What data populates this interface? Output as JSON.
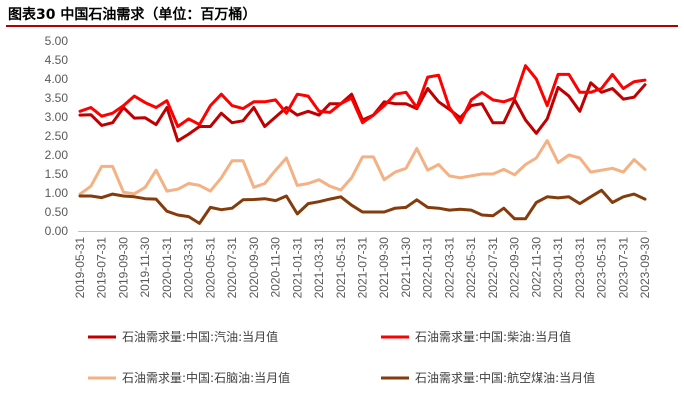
{
  "title": "图表30 中国石油需求（单位：百万桶）",
  "chart_data": {
    "type": "line",
    "title": "图表30 中国石油需求（单位：百万桶）",
    "xlabel": "",
    "ylabel": "",
    "ylim": [
      0,
      5
    ],
    "yticks": [
      "0.00",
      "0.50",
      "1.00",
      "1.50",
      "2.00",
      "2.50",
      "3.00",
      "3.50",
      "4.00",
      "4.50",
      "5.00"
    ],
    "grid": false,
    "legend_position": "bottom",
    "x": [
      "2019-05-31",
      "2019-06-30",
      "2019-07-31",
      "2019-08-31",
      "2019-09-30",
      "2019-10-31",
      "2019-11-30",
      "2019-12-31",
      "2020-01-31",
      "2020-02-29",
      "2020-03-31",
      "2020-04-30",
      "2020-05-31",
      "2020-06-30",
      "2020-07-31",
      "2020-08-31",
      "2020-09-30",
      "2020-10-31",
      "2020-11-30",
      "2020-12-31",
      "2021-01-31",
      "2021-02-28",
      "2021-03-31",
      "2021-04-30",
      "2021-05-31",
      "2021-06-30",
      "2021-07-31",
      "2021-08-31",
      "2021-09-30",
      "2021-10-31",
      "2021-11-30",
      "2021-12-31",
      "2022-01-31",
      "2022-02-28",
      "2022-03-31",
      "2022-04-30",
      "2022-05-31",
      "2022-06-30",
      "2022-07-31",
      "2022-08-31",
      "2022-09-30",
      "2022-10-31",
      "2022-11-30",
      "2022-12-31",
      "2023-01-31",
      "2023-02-28",
      "2023-03-31",
      "2023-04-30",
      "2023-05-31",
      "2023-06-30",
      "2023-07-31",
      "2023-08-31",
      "2023-09-30"
    ],
    "xtick_labels": [
      "2019-05-31",
      "2019-07-31",
      "2019-09-30",
      "2019-11-30",
      "2020-01-31",
      "2020-03-31",
      "2020-05-31",
      "2020-07-31",
      "2020-09-30",
      "2020-11-30",
      "2021-01-31",
      "2021-03-31",
      "2021-05-31",
      "2021-07-31",
      "2021-09-30",
      "2021-11-30",
      "2022-01-31",
      "2022-03-31",
      "2022-05-31",
      "2022-07-31",
      "2022-09-30",
      "2022-11-30",
      "2023-01-31",
      "2023-03-31",
      "2023-05-31",
      "2023-07-31",
      "2023-09-30"
    ],
    "series": [
      {
        "name": "石油需求量:中国:汽油:当月值",
        "color": "#c00000",
        "values": [
          3.05,
          3.06,
          2.78,
          2.85,
          3.25,
          2.97,
          2.98,
          2.8,
          3.25,
          2.37,
          2.55,
          2.75,
          2.75,
          3.1,
          2.85,
          2.9,
          3.25,
          2.75,
          3.0,
          3.25,
          3.05,
          3.15,
          3.05,
          3.35,
          3.35,
          3.6,
          2.92,
          3.05,
          3.4,
          3.35,
          3.35,
          3.22,
          3.75,
          3.4,
          3.2,
          2.98,
          3.3,
          3.35,
          2.85,
          2.85,
          3.45,
          2.92,
          2.57,
          2.95,
          3.78,
          3.55,
          3.15,
          3.9,
          3.65,
          3.75,
          3.47,
          3.52,
          3.85
        ]
      },
      {
        "name": "石油需求量:中国:柴油:当月值",
        "color": "#ff0000",
        "values": [
          3.15,
          3.25,
          3.02,
          3.1,
          3.3,
          3.55,
          3.38,
          3.25,
          3.43,
          2.75,
          2.95,
          2.8,
          3.3,
          3.6,
          3.3,
          3.22,
          3.4,
          3.4,
          3.45,
          3.1,
          3.6,
          3.55,
          3.15,
          3.12,
          3.35,
          3.5,
          2.85,
          3.05,
          3.3,
          3.6,
          3.65,
          3.25,
          4.05,
          4.1,
          3.25,
          2.85,
          3.45,
          3.65,
          3.45,
          3.4,
          3.5,
          4.35,
          4.0,
          3.3,
          4.12,
          4.12,
          3.65,
          3.65,
          3.75,
          4.12,
          3.75,
          3.93,
          3.97
        ]
      },
      {
        "name": "石油需求量:中国:石脑油:当月值",
        "color": "#f4b183",
        "values": [
          0.97,
          1.18,
          1.7,
          1.7,
          1.02,
          0.98,
          1.15,
          1.6,
          1.05,
          1.1,
          1.25,
          1.2,
          1.05,
          1.4,
          1.85,
          1.85,
          1.15,
          1.25,
          1.6,
          1.92,
          1.2,
          1.25,
          1.35,
          1.18,
          1.08,
          1.4,
          1.95,
          1.95,
          1.35,
          1.55,
          1.65,
          2.17,
          1.6,
          1.75,
          1.45,
          1.4,
          1.45,
          1.5,
          1.5,
          1.62,
          1.48,
          1.75,
          1.92,
          2.38,
          1.8,
          2.0,
          1.92,
          1.55,
          1.6,
          1.65,
          1.55,
          1.88,
          1.62
        ]
      },
      {
        "name": "石油需求量:中国:航空煤油:当月值",
        "color": "#843c0c",
        "values": [
          0.92,
          0.92,
          0.88,
          0.97,
          0.92,
          0.9,
          0.85,
          0.84,
          0.52,
          0.42,
          0.38,
          0.2,
          0.62,
          0.56,
          0.6,
          0.82,
          0.83,
          0.85,
          0.8,
          0.92,
          0.45,
          0.72,
          0.77,
          0.84,
          0.9,
          0.68,
          0.5,
          0.5,
          0.5,
          0.6,
          0.62,
          0.82,
          0.62,
          0.6,
          0.55,
          0.57,
          0.55,
          0.42,
          0.4,
          0.6,
          0.32,
          0.32,
          0.75,
          0.9,
          0.87,
          0.9,
          0.72,
          0.9,
          1.07,
          0.75,
          0.9,
          0.97,
          0.84
        ]
      }
    ]
  }
}
